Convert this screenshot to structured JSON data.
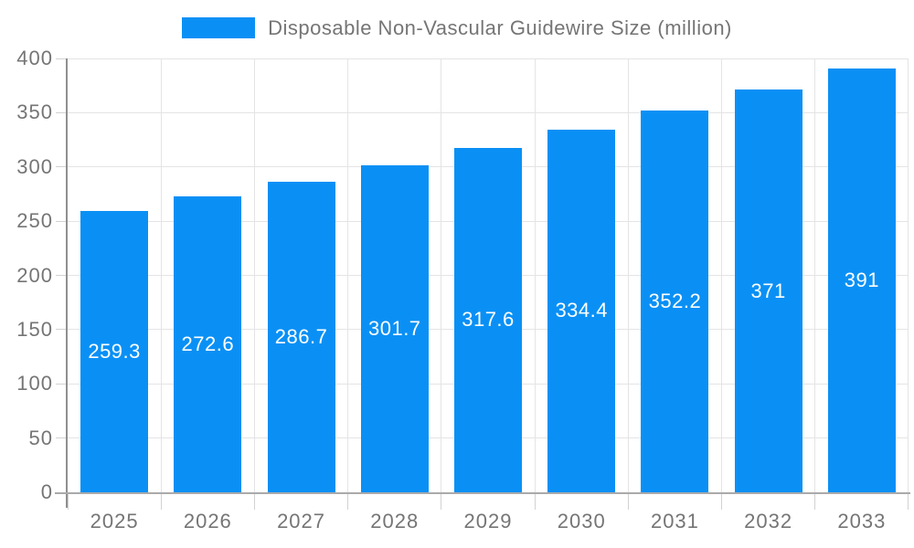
{
  "chart_data": {
    "type": "bar",
    "title": "Disposable Non-Vascular Guidewire Size (million)",
    "xlabel": "",
    "ylabel": "",
    "categories": [
      "2025",
      "2026",
      "2027",
      "2028",
      "2029",
      "2030",
      "2031",
      "2032",
      "2033"
    ],
    "series": [
      {
        "name": "Disposable Non-Vascular Guidewire Size (million)",
        "values": [
          259.3,
          272.6,
          286.7,
          301.7,
          317.6,
          334.4,
          352.2,
          371,
          391
        ],
        "value_labels": [
          "259.3",
          "272.6",
          "286.7",
          "301.7",
          "317.6",
          "334.4",
          "352.2",
          "371",
          "391"
        ]
      }
    ],
    "ylim": [
      0,
      400
    ],
    "yticks": [
      0,
      50,
      100,
      150,
      200,
      250,
      300,
      350,
      400
    ],
    "grid": true,
    "legend_position": "top-center",
    "value_label_position": "inside-center",
    "colors": {
      "bar": "#0a90f5",
      "grid": "#e4e4e4",
      "axis_y": "#8f8f8f",
      "axis_x": "#aaaaaa",
      "tick": "#d2d2d2",
      "axis_text": "#757575",
      "value_label_text": "#ffffff",
      "background": "#ffffff"
    }
  }
}
